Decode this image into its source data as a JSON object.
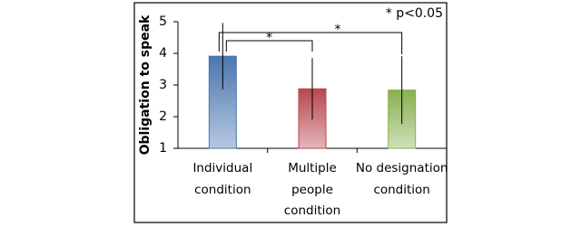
{
  "chart_data": {
    "type": "bar",
    "y_label": "Obligation to speak",
    "categories": [
      "Individual\ncondition",
      "Multiple\npeople\ncondition",
      "No designation\ncondition"
    ],
    "values": [
      3.91,
      2.88,
      2.84
    ],
    "errors": [
      1.05,
      0.97,
      1.07
    ],
    "colors": [
      "#4a76b0",
      "#b8474c",
      "#88b04f"
    ],
    "ylim": [
      1,
      5
    ],
    "yticks": [
      1,
      2,
      3,
      4,
      5
    ],
    "annotations": [
      "* p<0.05",
      "*",
      "*"
    ]
  }
}
